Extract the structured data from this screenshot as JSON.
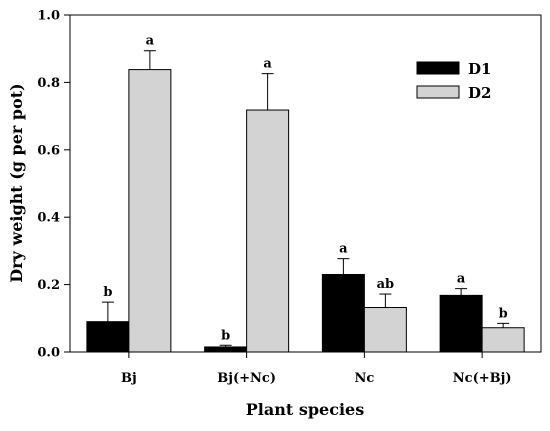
{
  "chart_data": {
    "type": "bar",
    "title": "",
    "xlabel": "Plant species",
    "ylabel": "Dry weight (g per pot)",
    "ylim": [
      0,
      1.0
    ],
    "yticks": [
      "0.0",
      "0.2",
      "0.4",
      "0.6",
      "0.8",
      "1.0"
    ],
    "categories": [
      "Bj",
      "Bj(+Nc)",
      "Nc",
      "Nc(+Bj)"
    ],
    "series": [
      {
        "name": "D1",
        "color": "#000000",
        "values": [
          0.09,
          0.015,
          0.23,
          0.168
        ],
        "errors": [
          0.058,
          0.005,
          0.047,
          0.02
        ],
        "labels": [
          "b",
          "b",
          "a",
          "a"
        ]
      },
      {
        "name": "D2",
        "color": "#d3d3d3",
        "values": [
          0.838,
          0.718,
          0.132,
          0.072
        ],
        "errors": [
          0.056,
          0.108,
          0.04,
          0.013
        ],
        "labels": [
          "a",
          "a",
          "ab",
          "b"
        ]
      }
    ],
    "legend_position": "top-right",
    "grid": false
  }
}
